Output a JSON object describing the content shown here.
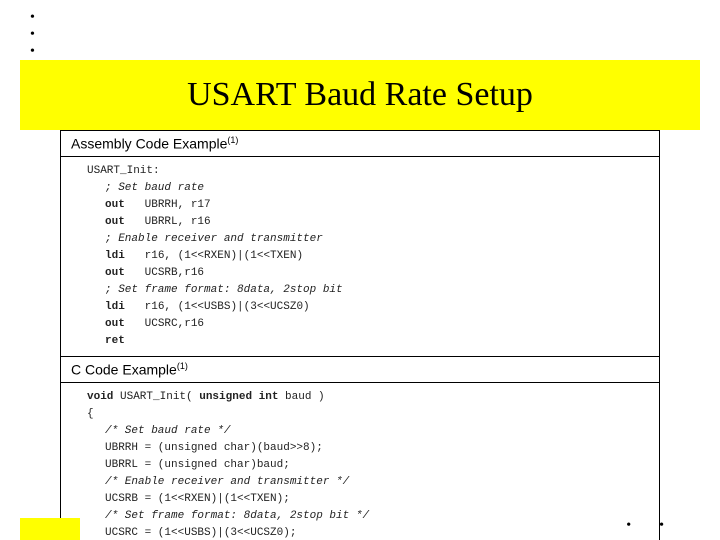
{
  "colors": {
    "accent_yellow": "#ffff00",
    "background": "#ffffff",
    "text": "#000000",
    "code_text": "#222222",
    "border": "#000000"
  },
  "title": "USART Baud Rate Setup",
  "asm_header_label": "Assembly Code Example",
  "asm_header_sup": "(1)",
  "c_header_label": "C Code Example",
  "c_header_sup": "(1)",
  "asm": {
    "l0": "USART_Init:",
    "l1": "; Set baud rate",
    "l2a": "out",
    "l2b": "UBRRH, r17",
    "l3a": "out",
    "l3b": "UBRRL, r16",
    "l4": "; Enable receiver and transmitter",
    "l5a": "ldi",
    "l5b": "r16, (1<<RXEN)|(1<<TXEN)",
    "l6a": "out",
    "l6b": "UCSRB,r16",
    "l7": "; Set frame format: 8data, 2stop bit",
    "l8a": "ldi",
    "l8b": "r16, (1<<USBS)|(3<<UCSZ0)",
    "l9a": "out",
    "l9b": "UCSRC,r16",
    "l10": "ret"
  },
  "c": {
    "l0a": "void",
    "l0b": " USART_Init( ",
    "l0c": "unsigned int",
    "l0d": " baud )",
    "l1": "{",
    "l2": "/* Set baud rate */",
    "l3": "UBRRH = (unsigned char)(baud>>8);",
    "l4": "UBRRL = (unsigned char)baud;",
    "l5": "/* Enable receiver and transmitter */",
    "l6": "UCSRB = (1<<RXEN)|(1<<TXEN);",
    "l7": "/* Set frame format: 8data, 2stop bit */",
    "l8": "UCSRC = (1<<USBS)|(3<<UCSZ0);",
    "l9": "}"
  }
}
